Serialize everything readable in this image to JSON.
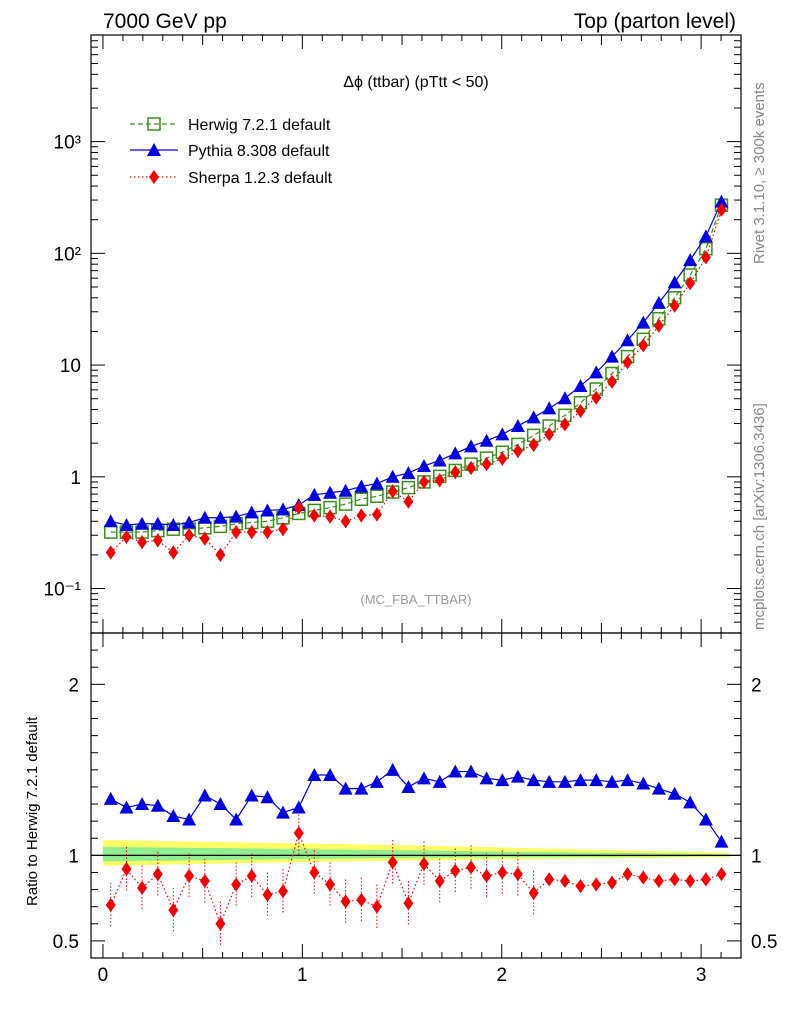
{
  "header": {
    "left_title": "7000 GeV pp",
    "right_title": "Top (parton level)"
  },
  "side_labels": {
    "rivet": "Rivet 3.1.10, ≥ 300k events",
    "mcplots": "mcplots.cern.ch [arXiv:1306.3436]"
  },
  "chart_data": [
    {
      "type": "scatter",
      "panel": "main",
      "title": "Δϕ (ttbar) (pTtt < 50)",
      "watermark": "(MC_FBA_TTBAR)",
      "yscale": "log",
      "xlim": [
        -0.06,
        3.2
      ],
      "ylim": [
        0.04,
        9000
      ],
      "ytick_labels": [
        "10⁻¹",
        "1",
        "10",
        "10²",
        "10³"
      ],
      "legend_position": "top-left",
      "x": [
        0.039,
        0.118,
        0.196,
        0.275,
        0.353,
        0.432,
        0.511,
        0.589,
        0.668,
        0.746,
        0.825,
        0.903,
        0.982,
        1.06,
        1.139,
        1.217,
        1.296,
        1.374,
        1.453,
        1.532,
        1.61,
        1.689,
        1.767,
        1.846,
        1.924,
        2.003,
        2.081,
        2.16,
        2.238,
        2.317,
        2.395,
        2.474,
        2.553,
        2.631,
        2.71,
        2.788,
        2.867,
        2.945,
        3.024,
        3.102
      ],
      "series": [
        {
          "name": "Herwig 7.2.1 default",
          "color": "#3a8f1a",
          "marker": "open-square",
          "line": "dashed",
          "values": [
            0.32,
            0.32,
            0.32,
            0.33,
            0.34,
            0.34,
            0.35,
            0.36,
            0.38,
            0.39,
            0.4,
            0.43,
            0.47,
            0.5,
            0.53,
            0.57,
            0.63,
            0.67,
            0.73,
            0.8,
            0.9,
            1.01,
            1.14,
            1.3,
            1.47,
            1.66,
            1.95,
            2.35,
            2.85,
            3.55,
            4.6,
            6.1,
            8.4,
            11.9,
            17.0,
            26.0,
            40.0,
            64.0,
            110.0,
            270.0
          ]
        },
        {
          "name": "Pythia 8.308 default",
          "color": "#0000dd",
          "marker": "filled-triangle",
          "line": "solid",
          "values": [
            0.4,
            0.37,
            0.38,
            0.38,
            0.37,
            0.39,
            0.43,
            0.43,
            0.44,
            0.48,
            0.5,
            0.51,
            0.56,
            0.69,
            0.72,
            0.75,
            0.82,
            0.87,
            1.0,
            1.08,
            1.25,
            1.4,
            1.62,
            1.87,
            2.1,
            2.4,
            2.85,
            3.4,
            4.1,
            5.05,
            6.5,
            8.6,
            11.9,
            16.7,
            24.0,
            36.0,
            55.0,
            87.0,
            142.0,
            290.0
          ]
        },
        {
          "name": "Sherpa 1.2.3 default",
          "color": "#ee0000",
          "marker": "filled-diamond",
          "line": "dotted",
          "values": [
            0.21,
            0.29,
            0.26,
            0.27,
            0.21,
            0.3,
            0.28,
            0.2,
            0.32,
            0.32,
            0.32,
            0.34,
            0.53,
            0.45,
            0.44,
            0.4,
            0.45,
            0.46,
            0.74,
            0.6,
            0.9,
            0.93,
            1.1,
            1.2,
            1.3,
            1.45,
            1.7,
            1.93,
            2.4,
            2.95,
            3.88,
            5.1,
            7.1,
            10.6,
            15.0,
            22.5,
            34.0,
            54.0,
            92.0,
            245.0
          ]
        }
      ]
    },
    {
      "type": "line",
      "panel": "ratio",
      "ylabel": "Ratio to Herwig 7.2.1 default",
      "xlim": [
        -0.06,
        3.2
      ],
      "ylim": [
        0.4,
        2.3
      ],
      "xtick_labels": [
        "0",
        "1",
        "2",
        "3"
      ],
      "ytick_labels": [
        "0.5",
        "1",
        "2"
      ],
      "reference_line": 1.0,
      "band_color_inner": "#90ee90",
      "band_color_outer": "#ffff66",
      "x": [
        0.039,
        0.118,
        0.196,
        0.275,
        0.353,
        0.432,
        0.511,
        0.589,
        0.668,
        0.746,
        0.825,
        0.903,
        0.982,
        1.06,
        1.139,
        1.217,
        1.296,
        1.374,
        1.453,
        1.532,
        1.61,
        1.689,
        1.767,
        1.846,
        1.924,
        2.003,
        2.081,
        2.16,
        2.238,
        2.317,
        2.395,
        2.474,
        2.553,
        2.631,
        2.71,
        2.788,
        2.867,
        2.945,
        3.024,
        3.102
      ],
      "series": [
        {
          "name": "Pythia 8.308 default",
          "color": "#0000dd",
          "values": [
            1.33,
            1.28,
            1.3,
            1.29,
            1.23,
            1.21,
            1.35,
            1.3,
            1.21,
            1.35,
            1.34,
            1.25,
            1.28,
            1.47,
            1.47,
            1.39,
            1.39,
            1.43,
            1.5,
            1.4,
            1.45,
            1.43,
            1.49,
            1.49,
            1.45,
            1.44,
            1.46,
            1.44,
            1.43,
            1.43,
            1.44,
            1.44,
            1.43,
            1.44,
            1.42,
            1.39,
            1.36,
            1.31,
            1.21,
            1.08
          ]
        },
        {
          "name": "Sherpa 1.2.3 default",
          "color": "#ee0000",
          "values": [
            0.71,
            0.92,
            0.81,
            0.89,
            0.68,
            0.88,
            0.85,
            0.6,
            0.83,
            0.88,
            0.77,
            0.79,
            1.13,
            0.9,
            0.83,
            0.73,
            0.74,
            0.7,
            0.96,
            0.72,
            0.95,
            0.85,
            0.91,
            0.93,
            0.88,
            0.9,
            0.89,
            0.78,
            0.86,
            0.85,
            0.82,
            0.83,
            0.84,
            0.89,
            0.87,
            0.85,
            0.86,
            0.85,
            0.86,
            0.89
          ]
        }
      ]
    }
  ]
}
